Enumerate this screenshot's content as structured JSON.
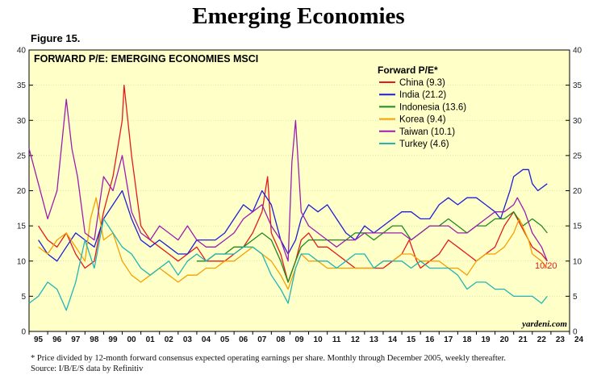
{
  "header": {
    "title": "Emerging Economies",
    "figure": "Figure 15."
  },
  "footnote": {
    "line1": "*  Price divided by 12-month forward consensus expected operating earnings per share. Monthly through December 2005, weekly thereafter.",
    "line2": "Source: I/B/E/S data by Refinitiv"
  },
  "colors": {
    "China": "#e41a1c",
    "India": "#1f1fd6",
    "Indonesia": "#1c8a1c",
    "Korea": "#f5a000",
    "Taiwan": "#9b1fb0",
    "Turkey": "#20b5b5",
    "plot_bg": "#ffffc8"
  },
  "chart_data": {
    "type": "line",
    "title": "FORWARD P/E: EMERGING ECONOMIES MSCI",
    "legend_title": "Forward P/E*",
    "legend_position": "top-right",
    "ylim": [
      0,
      40
    ],
    "yticks": [
      0,
      5,
      10,
      15,
      20,
      25,
      30,
      35,
      40
    ],
    "xlim": [
      1995,
      2024
    ],
    "x_tick_labels": [
      "95",
      "96",
      "97",
      "98",
      "99",
      "00",
      "01",
      "02",
      "03",
      "04",
      "05",
      "06",
      "07",
      "08",
      "09",
      "10",
      "11",
      "12",
      "13",
      "14",
      "15",
      "16",
      "17",
      "18",
      "19",
      "20",
      "21",
      "22",
      "23",
      "24"
    ],
    "end_annotation": "10/20",
    "watermark": "yardeni.com",
    "series": [
      {
        "name": "China",
        "label": "China (9.3)",
        "x": [
          1995.5,
          1996,
          1996.5,
          1997,
          1997.5,
          1998,
          1998.5,
          1999,
          1999.5,
          2000,
          2000.1,
          2000.5,
          2001,
          2001.5,
          2002,
          2002.5,
          2003,
          2003.5,
          2004,
          2004.5,
          2005,
          2005.5,
          2006,
          2006.5,
          2007,
          2007.5,
          2007.8,
          2008,
          2008.5,
          2008.9,
          2009.3,
          2009.6,
          2010,
          2010.5,
          2011,
          2011.5,
          2012,
          2012.5,
          2013,
          2013.5,
          2014,
          2014.5,
          2015,
          2015.4,
          2015.8,
          2016,
          2016.5,
          2017,
          2017.5,
          2018,
          2018.5,
          2019,
          2019.5,
          2020,
          2020.5,
          2021,
          2021.2,
          2021.6,
          2022,
          2022.5,
          2022.8
        ],
        "values": [
          15,
          13,
          12,
          14,
          11,
          9,
          10,
          17,
          22,
          30,
          35,
          25,
          15,
          13,
          12,
          11,
          10,
          11,
          12,
          10,
          10,
          10,
          11,
          12,
          14,
          17,
          22,
          14,
          11,
          7,
          10,
          13,
          14,
          12,
          12,
          11,
          10,
          9,
          9,
          9,
          9,
          10,
          11,
          13,
          10,
          9,
          10,
          11,
          13,
          12,
          11,
          10,
          11,
          12,
          15,
          17,
          16,
          14,
          12,
          11,
          10
        ]
      },
      {
        "name": "India",
        "label": "India (21.2)",
        "x": [
          1995.5,
          1996,
          1996.5,
          1997,
          1997.5,
          1998,
          1998.5,
          1999,
          1999.5,
          2000,
          2000.5,
          2001,
          2001.5,
          2002,
          2002.5,
          2003,
          2003.5,
          2004,
          2004.5,
          2005,
          2005.5,
          2006,
          2006.5,
          2007,
          2007.5,
          2008,
          2008.5,
          2008.9,
          2009.3,
          2009.6,
          2010,
          2010.5,
          2011,
          2011.5,
          2012,
          2012.5,
          2013,
          2013.5,
          2014,
          2014.5,
          2015,
          2015.5,
          2016,
          2016.5,
          2017,
          2017.5,
          2018,
          2018.5,
          2019,
          2019.5,
          2020,
          2020.3,
          2020.8,
          2021,
          2021.5,
          2021.8,
          2022,
          2022.3,
          2022.8
        ],
        "values": [
          13,
          11,
          10,
          12,
          14,
          13,
          12,
          16,
          18,
          20,
          16,
          13,
          12,
          13,
          12,
          11,
          11,
          13,
          13,
          13,
          14,
          16,
          18,
          17,
          20,
          18,
          13,
          11,
          13,
          16,
          18,
          17,
          18,
          16,
          14,
          13,
          15,
          14,
          15,
          16,
          17,
          17,
          16,
          16,
          18,
          19,
          18,
          19,
          19,
          18,
          17,
          16,
          20,
          22,
          23,
          23,
          21,
          20,
          21
        ]
      },
      {
        "name": "Indonesia",
        "label": "Indonesia (13.6)",
        "x": [
          2004,
          2004.5,
          2005,
          2005.5,
          2006,
          2006.5,
          2007,
          2007.5,
          2008,
          2008.5,
          2008.9,
          2009.3,
          2009.6,
          2010,
          2010.5,
          2011,
          2011.5,
          2012,
          2012.5,
          2013,
          2013.5,
          2014,
          2014.5,
          2015,
          2015.5,
          2016,
          2016.5,
          2017,
          2017.5,
          2018,
          2018.5,
          2019,
          2019.5,
          2020,
          2020.5,
          2021,
          2021.5,
          2022,
          2022.5,
          2022.8
        ],
        "values": [
          10,
          10,
          11,
          11,
          12,
          12,
          13,
          14,
          13,
          10,
          7,
          10,
          12,
          13,
          13,
          13,
          13,
          13,
          14,
          14,
          13,
          14,
          15,
          15,
          13,
          14,
          15,
          15,
          16,
          15,
          14,
          15,
          15,
          16,
          16,
          17,
          15,
          16,
          15,
          14
        ]
      },
      {
        "name": "Korea",
        "label": "Korea (9.4)",
        "x": [
          1995.5,
          1996,
          1996.5,
          1997,
          1997.5,
          1998,
          1998.3,
          1998.6,
          1999,
          1999.5,
          2000,
          2000.5,
          2001,
          2001.5,
          2002,
          2002.5,
          2003,
          2003.5,
          2004,
          2004.5,
          2005,
          2005.5,
          2006,
          2006.5,
          2007,
          2007.5,
          2008,
          2008.5,
          2008.9,
          2009.3,
          2009.6,
          2010,
          2010.5,
          2011,
          2011.5,
          2012,
          2012.5,
          2013,
          2013.5,
          2014,
          2014.5,
          2015,
          2015.5,
          2016,
          2016.5,
          2017,
          2017.5,
          2018,
          2018.5,
          2019,
          2019.5,
          2020,
          2020.5,
          2021,
          2021.3,
          2021.8,
          2022,
          2022.5,
          2022.8
        ],
        "values": [
          12,
          11,
          13,
          14,
          12,
          10,
          16,
          19,
          13,
          14,
          10,
          8,
          7,
          8,
          9,
          8,
          7,
          8,
          8,
          9,
          9,
          10,
          10,
          11,
          12,
          11,
          10,
          8,
          6,
          9,
          11,
          10,
          10,
          9,
          9,
          9,
          9,
          9,
          9,
          10,
          10,
          11,
          11,
          10,
          10,
          10,
          9,
          9,
          8,
          10,
          11,
          11,
          12,
          14,
          16,
          13,
          11,
          10,
          9
        ]
      },
      {
        "name": "Taiwan",
        "label": "Taiwan (10.1)",
        "x": [
          1995,
          1995.5,
          1996,
          1996.5,
          1997,
          1997.3,
          1997.6,
          1998,
          1998.5,
          1999,
          1999.5,
          2000,
          2000.5,
          2001,
          2001.5,
          2002,
          2002.5,
          2003,
          2003.5,
          2004,
          2004.5,
          2005,
          2005.5,
          2006,
          2006.5,
          2007,
          2007.5,
          2008,
          2008.5,
          2008.9,
          2009.1,
          2009.3,
          2009.6,
          2010,
          2010.5,
          2011,
          2011.5,
          2012,
          2012.5,
          2013,
          2013.5,
          2014,
          2014.5,
          2015,
          2015.5,
          2016,
          2016.5,
          2017,
          2017.5,
          2018,
          2018.5,
          2019,
          2019.5,
          2020,
          2020.5,
          2021,
          2021.2,
          2021.6,
          2022,
          2022.5,
          2022.8
        ],
        "values": [
          26,
          21,
          16,
          20,
          33,
          26,
          22,
          14,
          13,
          22,
          20,
          25,
          17,
          14,
          13,
          15,
          14,
          13,
          15,
          13,
          12,
          12,
          13,
          14,
          16,
          17,
          18,
          15,
          13,
          10,
          24,
          30,
          17,
          15,
          14,
          13,
          12,
          13,
          13,
          14,
          14,
          14,
          14,
          14,
          13,
          14,
          15,
          15,
          15,
          14,
          14,
          15,
          16,
          17,
          17,
          18,
          19,
          17,
          14,
          12,
          10
        ]
      },
      {
        "name": "Turkey",
        "label": "Turkey (4.6)",
        "x": [
          1995,
          1995.5,
          1996,
          1996.5,
          1997,
          1997.5,
          1998,
          1998.5,
          1999,
          1999.5,
          2000,
          2000.5,
          2001,
          2001.5,
          2002,
          2002.5,
          2003,
          2003.5,
          2004,
          2004.5,
          2005,
          2005.5,
          2006,
          2006.5,
          2007,
          2007.5,
          2008,
          2008.5,
          2008.9,
          2009.3,
          2009.6,
          2010,
          2010.5,
          2011,
          2011.5,
          2012,
          2012.5,
          2013,
          2013.5,
          2014,
          2014.5,
          2015,
          2015.5,
          2016,
          2016.5,
          2017,
          2017.5,
          2018,
          2018.5,
          2019,
          2019.5,
          2020,
          2020.5,
          2021,
          2021.5,
          2022,
          2022.5,
          2022.8
        ],
        "values": [
          4,
          5,
          7,
          6,
          3,
          7,
          13,
          9,
          16,
          14,
          12,
          11,
          9,
          8,
          9,
          10,
          8,
          10,
          11,
          10,
          11,
          11,
          11,
          12,
          12,
          11,
          8,
          6,
          4,
          9,
          11,
          11,
          10,
          10,
          9,
          10,
          11,
          11,
          9,
          10,
          10,
          10,
          9,
          10,
          9,
          9,
          9,
          8,
          6,
          7,
          7,
          6,
          6,
          5,
          5,
          5,
          4,
          5
        ]
      }
    ]
  }
}
